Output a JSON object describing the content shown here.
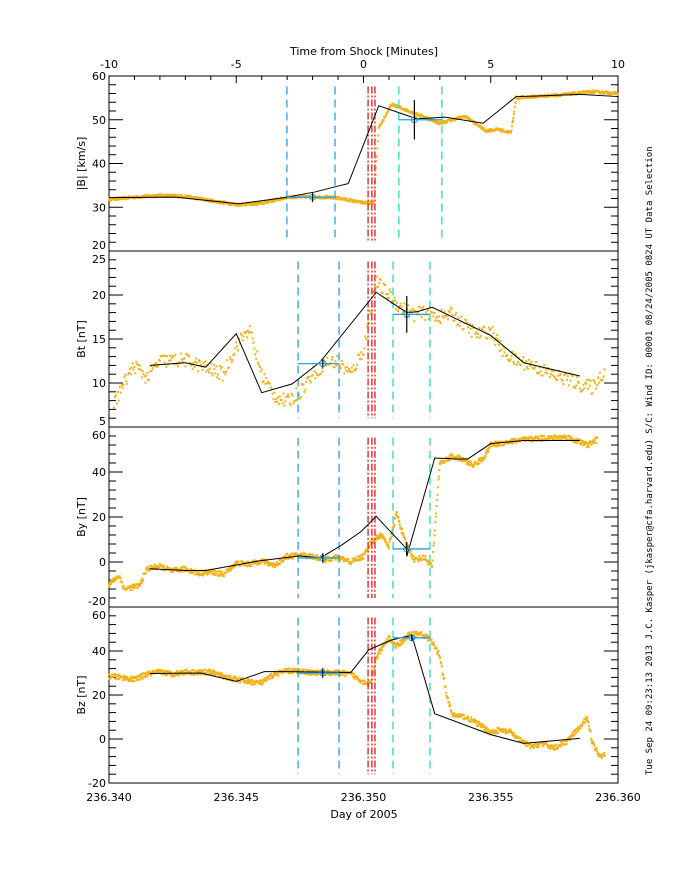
{
  "chart_data": {
    "type": "line",
    "top_axis": {
      "label": "Time from Shock [Minutes]",
      "range": [
        -10,
        10
      ],
      "ticks": [
        "-10",
        "-5",
        "0",
        "5",
        "10"
      ],
      "tick_values": [
        -10,
        -5,
        0,
        5,
        10
      ]
    },
    "bottom_axis": {
      "label": "Day of 2005",
      "range": [
        236.34,
        236.36
      ],
      "ticks": [
        "236.340",
        "236.345",
        "236.350",
        "236.355",
        "236.360"
      ],
      "tick_values": [
        236.34,
        236.345,
        236.35,
        236.355,
        236.36
      ]
    },
    "side_text": "Tue Sep 24 09:23:13 2013  J.C. Kasper (jkasper@cfa.harvard.edu)  S/C: Wind ID: 00001 08/24/2005  0824 UT Data Selection",
    "colors": {
      "data_points": "#f2b21a",
      "fit_line": "#000000",
      "upstream_window": "#2aa0dc",
      "downstream_window": "#21dcc0",
      "shock": "#e01818",
      "average": "#2aa0dc"
    },
    "panels": [
      {
        "name": "B-magnitude",
        "ylabel": "|B| [km/s]",
        "ylim": [
          20,
          60
        ],
        "yticks": [
          "20",
          "30",
          "40",
          "50",
          "60"
        ],
        "ytick_values": [
          20,
          30,
          40,
          50,
          60
        ],
        "fit_line": [
          [
            236.34,
            32.2
          ],
          [
            236.3426,
            32.3
          ],
          [
            236.3451,
            30.8
          ],
          [
            236.3469,
            32.2
          ],
          [
            236.3481,
            33.5
          ],
          [
            236.3489,
            34.7
          ],
          [
            236.3494,
            35.4
          ],
          [
            236.3506,
            53.2
          ],
          [
            236.3514,
            51.6
          ],
          [
            236.3521,
            50.2
          ],
          [
            236.3532,
            50.6
          ],
          [
            236.3547,
            49.2
          ],
          [
            236.356,
            55.3
          ],
          [
            236.3567,
            55.4
          ],
          [
            236.3585,
            55.8
          ],
          [
            236.36,
            55.3
          ]
        ],
        "samples": [
          [
            236.34,
            31.8
          ],
          [
            236.341,
            32.3
          ],
          [
            236.342,
            32.7
          ],
          [
            236.343,
            32.5
          ],
          [
            236.344,
            31.5
          ],
          [
            236.345,
            30.6
          ],
          [
            236.346,
            30.9
          ],
          [
            236.347,
            32.3
          ],
          [
            236.348,
            32.4
          ],
          [
            236.349,
            32.1
          ],
          [
            236.35,
            31.0
          ],
          [
            236.3504,
            31.0
          ],
          [
            236.3506,
            48.0
          ],
          [
            236.3511,
            53.5
          ],
          [
            236.352,
            51.5
          ],
          [
            236.353,
            49.2
          ],
          [
            236.354,
            50.8
          ],
          [
            236.3548,
            47.5
          ],
          [
            236.3553,
            47.8
          ],
          [
            236.3558,
            47.0
          ],
          [
            236.356,
            55.0
          ],
          [
            236.357,
            55.4
          ],
          [
            236.358,
            55.8
          ],
          [
            236.359,
            56.4
          ],
          [
            236.36,
            56.0
          ]
        ],
        "upstream_window": [
          236.34699,
          236.34888
        ],
        "downstream_window": [
          236.35139,
          236.35308
        ],
        "upstream_avg": {
          "x": 236.348,
          "y": 32.3
        },
        "downstream_avg": {
          "x": 236.352,
          "y": 50.0,
          "err": 4.5
        }
      },
      {
        "name": "B-t",
        "ylabel": "Bt [nT]",
        "ylim": [
          5,
          25
        ],
        "yticks": [
          "5",
          "10",
          "15",
          "20",
          "25"
        ],
        "ytick_values": [
          5,
          10,
          15,
          20,
          25
        ],
        "fit_line": [
          [
            236.3416,
            12.0
          ],
          [
            236.343,
            12.3
          ],
          [
            236.3438,
            11.8
          ],
          [
            236.345,
            15.6
          ],
          [
            236.346,
            8.9
          ],
          [
            236.3472,
            9.9
          ],
          [
            236.3483,
            12.4
          ],
          [
            236.3505,
            20.3
          ],
          [
            236.3517,
            18.0
          ],
          [
            236.3521,
            18.1
          ],
          [
            236.3527,
            18.6
          ],
          [
            236.355,
            15.4
          ],
          [
            236.3563,
            12.3
          ],
          [
            236.3585,
            10.8
          ]
        ],
        "samples": [
          [
            236.3402,
            7.5
          ],
          [
            236.3405,
            9.5
          ],
          [
            236.341,
            12.0
          ],
          [
            236.3415,
            10.6
          ],
          [
            236.342,
            12.5
          ],
          [
            236.343,
            12.6
          ],
          [
            236.344,
            11.5
          ],
          [
            236.3445,
            11.0
          ],
          [
            236.345,
            14.2
          ],
          [
            236.3455,
            16.2
          ],
          [
            236.346,
            11.0
          ],
          [
            236.3465,
            8.6
          ],
          [
            236.347,
            7.8
          ],
          [
            236.3475,
            9.0
          ],
          [
            236.348,
            11.0
          ],
          [
            236.3485,
            12.3
          ],
          [
            236.349,
            12.4
          ],
          [
            236.3495,
            11.0
          ],
          [
            236.35,
            13.8
          ],
          [
            236.3505,
            21.5
          ],
          [
            236.351,
            20.0
          ],
          [
            236.3515,
            18.5
          ],
          [
            236.352,
            17.8
          ],
          [
            236.3525,
            18.0
          ],
          [
            236.353,
            17.5
          ],
          [
            236.3535,
            17.8
          ],
          [
            236.354,
            16.5
          ],
          [
            236.3545,
            15.5
          ],
          [
            236.355,
            16.0
          ],
          [
            236.3555,
            13.5
          ],
          [
            236.356,
            12.5
          ],
          [
            236.3565,
            12.2
          ],
          [
            236.357,
            11.5
          ],
          [
            236.3575,
            10.8
          ],
          [
            236.358,
            10.5
          ],
          [
            236.3585,
            9.8
          ],
          [
            236.359,
            9.5
          ],
          [
            236.3595,
            11.5
          ]
        ],
        "upstream_window": [
          236.34743,
          236.34904
        ],
        "downstream_window": [
          236.35116,
          236.35261
        ],
        "upstream_avg": {
          "x": 236.3484,
          "y": 12.2
        },
        "downstream_avg": {
          "x": 236.3517,
          "y": 17.8,
          "err": 2.1
        }
      },
      {
        "name": "B-y",
        "ylabel": "By [nT]",
        "ylim": [
          -20,
          60
        ],
        "yticks": [
          "-20",
          "0",
          "20",
          "40",
          "60"
        ],
        "ytick_values": [
          -20,
          0,
          20,
          40,
          60
        ],
        "fit_line": [
          [
            236.3416,
            -3.0
          ],
          [
            236.343,
            -3.8
          ],
          [
            236.3438,
            -3.8
          ],
          [
            236.3459,
            0.5
          ],
          [
            236.3475,
            2.7
          ],
          [
            236.3483,
            1.8
          ],
          [
            236.3491,
            7.2
          ],
          [
            236.3499,
            13.5
          ],
          [
            236.3505,
            20.3
          ],
          [
            236.3517,
            5.8
          ],
          [
            236.3517,
            2.5
          ],
          [
            236.3528,
            46.2
          ],
          [
            236.3536,
            45.8
          ],
          [
            236.3541,
            45.8
          ],
          [
            236.355,
            52.6
          ],
          [
            236.3563,
            54.0
          ],
          [
            236.3585,
            54.0
          ]
        ],
        "samples": [
          [
            236.34,
            -10.0
          ],
          [
            236.3404,
            -6.0
          ],
          [
            236.3406,
            -12.0
          ],
          [
            236.3412,
            -10.5
          ],
          [
            236.3415,
            -3.0
          ],
          [
            236.342,
            -2.0
          ],
          [
            236.3425,
            -4.0
          ],
          [
            236.343,
            -3.0
          ],
          [
            236.3435,
            -5.0
          ],
          [
            236.344,
            -4.5
          ],
          [
            236.3445,
            -5.5
          ],
          [
            236.345,
            -0.5
          ],
          [
            236.3455,
            -1.0
          ],
          [
            236.346,
            0.5
          ],
          [
            236.3465,
            -1.5
          ],
          [
            236.347,
            2.5
          ],
          [
            236.3475,
            3.0
          ],
          [
            236.348,
            2.5
          ],
          [
            236.3485,
            1.0
          ],
          [
            236.349,
            2.0
          ],
          [
            236.3495,
            0.0
          ],
          [
            236.35,
            2.5
          ],
          [
            236.3503,
            9.0
          ],
          [
            236.3507,
            12.0
          ],
          [
            236.351,
            7.0
          ],
          [
            236.3513,
            22.0
          ],
          [
            236.3516,
            10.0
          ],
          [
            236.352,
            1.0
          ],
          [
            236.3524,
            2.0
          ],
          [
            236.3527,
            -2.0
          ],
          [
            236.353,
            44.0
          ],
          [
            236.3535,
            47.0
          ],
          [
            236.354,
            45.0
          ],
          [
            236.3543,
            43.0
          ],
          [
            236.3547,
            46.0
          ],
          [
            236.355,
            52.0
          ],
          [
            236.356,
            54.0
          ],
          [
            236.357,
            55.0
          ],
          [
            236.358,
            55.5
          ],
          [
            236.3588,
            52.0
          ],
          [
            236.3592,
            54.5
          ]
        ],
        "upstream_window": [
          236.34743,
          236.34904
        ],
        "downstream_window": [
          236.35116,
          236.35261
        ],
        "upstream_avg": {
          "x": 236.3484,
          "y": 1.8
        },
        "downstream_avg": {
          "x": 236.3517,
          "y": 5.8,
          "err": 3.0
        }
      },
      {
        "name": "B-z",
        "ylabel": "Bz [nT]",
        "ylim": [
          -20,
          60
        ],
        "yticks": [
          "-20",
          "0",
          "20",
          "40",
          "60"
        ],
        "ytick_values": [
          -20,
          0,
          20,
          40,
          60
        ],
        "fit_line": [
          [
            236.3416,
            29.8
          ],
          [
            236.3436,
            30.0
          ],
          [
            236.345,
            26.2
          ],
          [
            236.3461,
            30.6
          ],
          [
            236.3471,
            30.6
          ],
          [
            236.3495,
            30.2
          ],
          [
            236.3502,
            40.5
          ],
          [
            236.3511,
            45.0
          ],
          [
            236.3519,
            47.1
          ],
          [
            236.3528,
            11.5
          ],
          [
            236.355,
            2.0
          ],
          [
            236.3563,
            -2.0
          ],
          [
            236.3585,
            0.3
          ]
        ],
        "samples": [
          [
            236.34,
            28.5
          ],
          [
            236.3405,
            28.0
          ],
          [
            236.341,
            27.0
          ],
          [
            236.3415,
            29.5
          ],
          [
            236.342,
            30.5
          ],
          [
            236.3425,
            29.5
          ],
          [
            236.343,
            30.5
          ],
          [
            236.3435,
            30.2
          ],
          [
            236.344,
            30.5
          ],
          [
            236.3445,
            28.5
          ],
          [
            236.345,
            27.0
          ],
          [
            236.3455,
            26.0
          ],
          [
            236.346,
            25.5
          ],
          [
            236.3465,
            29.5
          ],
          [
            236.347,
            31.0
          ],
          [
            236.3475,
            30.8
          ],
          [
            236.348,
            30.2
          ],
          [
            236.3485,
            30.2
          ],
          [
            236.349,
            30.0
          ],
          [
            236.3495,
            29.5
          ],
          [
            236.35,
            26.0
          ],
          [
            236.3503,
            25.0
          ],
          [
            236.3505,
            37.0
          ],
          [
            236.351,
            46.0
          ],
          [
            236.3513,
            42.0
          ],
          [
            236.3518,
            47.5
          ],
          [
            236.3522,
            48.0
          ],
          [
            236.3526,
            45.5
          ],
          [
            236.353,
            38.0
          ],
          [
            236.3533,
            18.0
          ],
          [
            236.3535,
            11.0
          ],
          [
            236.354,
            10.0
          ],
          [
            236.3545,
            7.0
          ],
          [
            236.355,
            3.0
          ],
          [
            236.3553,
            4.0
          ],
          [
            236.3558,
            3.0
          ],
          [
            236.3562,
            -1.0
          ],
          [
            236.3566,
            -3.5
          ],
          [
            236.357,
            -2.0
          ],
          [
            236.3575,
            -4.0
          ],
          [
            236.358,
            -1.0
          ],
          [
            236.3586,
            6.5
          ],
          [
            236.3588,
            10.0
          ],
          [
            236.359,
            -2.0
          ],
          [
            236.3593,
            -8.0
          ],
          [
            236.3595,
            -6.5
          ]
        ],
        "upstream_window": [
          236.34743,
          236.34904
        ],
        "downstream_window": [
          236.35116,
          236.35261
        ],
        "upstream_avg": {
          "x": 236.3484,
          "y": 30.0
        },
        "downstream_avg": {
          "x": 236.3519,
          "y": 46.0,
          "err": 1.5
        }
      }
    ],
    "shock_lines": [
      236.35018,
      236.35033,
      236.35045
    ]
  }
}
